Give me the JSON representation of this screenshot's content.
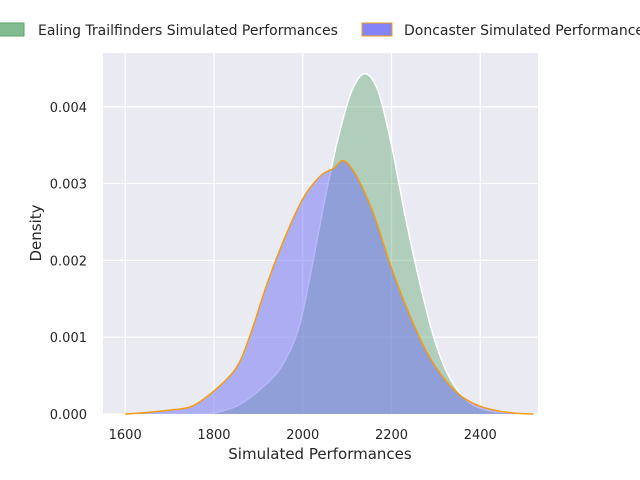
{
  "chart_data": {
    "type": "area",
    "title": "",
    "xlabel": "Simulated Performances",
    "ylabel": "Density",
    "xlim": [
      1550,
      2530
    ],
    "ylim": [
      0,
      0.0047
    ],
    "xticks": [
      1600,
      1800,
      2000,
      2200,
      2400
    ],
    "xtick_labels": [
      "1600",
      "1800",
      "2000",
      "2200",
      "2400"
    ],
    "yticks": [
      0,
      0.001,
      0.002,
      0.003,
      0.004
    ],
    "ytick_labels": [
      "0.000",
      "0.001",
      "0.002",
      "0.003",
      "0.004"
    ],
    "grid": true,
    "background": "#eaeaf2",
    "legend_position": "top",
    "series": [
      {
        "name": "Ealing Trailfinders Simulated Performances",
        "fill": "#5aa56a",
        "fill_opacity": 0.4,
        "stroke": "#ffffff",
        "x": [
          1790,
          1850,
          1900,
          1950,
          1990,
          2020,
          2050,
          2080,
          2110,
          2140,
          2170,
          2200,
          2230,
          2260,
          2290,
          2320,
          2350,
          2380,
          2420,
          2470,
          2500
        ],
        "y": [
          0.0,
          0.0001,
          0.0003,
          0.0006,
          0.0011,
          0.0019,
          0.0028,
          0.0036,
          0.0042,
          0.00443,
          0.0042,
          0.0035,
          0.0026,
          0.0018,
          0.0011,
          0.0006,
          0.0003,
          0.00013,
          4e-05,
          1e-05,
          0.0
        ]
      },
      {
        "name": "Doncaster Simulated Performances",
        "fill": "#6f6ff5",
        "fill_opacity": 0.5,
        "stroke": "#f39c12",
        "x": [
          1600,
          1650,
          1700,
          1750,
          1800,
          1850,
          1880,
          1920,
          1960,
          2000,
          2040,
          2070,
          2090,
          2110,
          2130,
          2160,
          2200,
          2240,
          2280,
          2320,
          2360,
          2400,
          2440,
          2480,
          2520
        ],
        "y": [
          0.0,
          2e-05,
          5e-05,
          0.0001,
          0.0003,
          0.0006,
          0.001,
          0.0017,
          0.0023,
          0.0028,
          0.0031,
          0.0032,
          0.0033,
          0.0032,
          0.003,
          0.0026,
          0.0019,
          0.0013,
          0.0008,
          0.00045,
          0.00022,
          0.0001,
          4e-05,
          1e-05,
          0.0
        ]
      }
    ]
  }
}
